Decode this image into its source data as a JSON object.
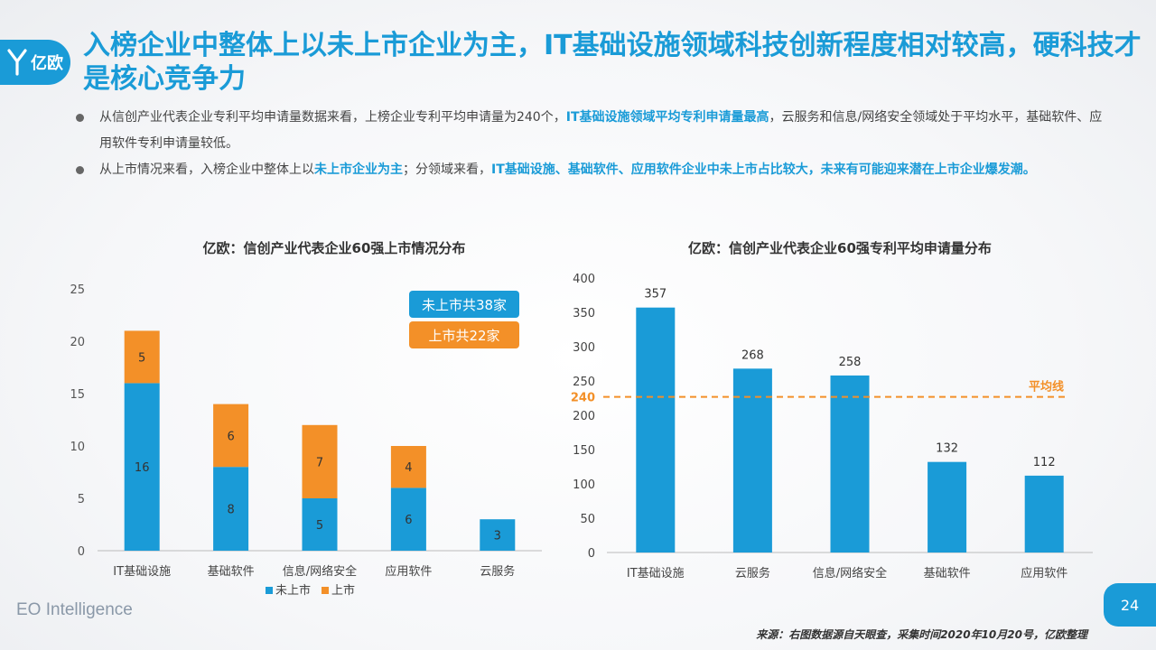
{
  "brand": {
    "logo_text": "亿欧",
    "footer": "EO Intelligence",
    "page_number": "24"
  },
  "title": "入榜企业中整体上以未上市企业为主，IT基础设施领域科技创新程度相对较高，硬科技才是核心竞争力",
  "bullets": [
    {
      "parts": [
        {
          "text": "从信创产业代表企业专利平均申请量数据来看，上榜企业专利平均申请量为240个，",
          "highlight": false
        },
        {
          "text": "IT基础设施领域平均专利申请量最高",
          "highlight": true
        },
        {
          "text": "，云服务和信息/网络安全领域处于平均水平，基础软件、应用软件专利申请量较低。",
          "highlight": false
        }
      ]
    },
    {
      "parts": [
        {
          "text": "从上市情况来看，入榜企业中整体上以",
          "highlight": false
        },
        {
          "text": "未上市企业为主",
          "highlight": true
        },
        {
          "text": "；分领域来看，",
          "highlight": false
        },
        {
          "text": "IT基础设施、基础软件、应用软件企业中未上市占比较大，未来有可能迎来潜在上市企业爆发潮。",
          "highlight": true
        }
      ]
    }
  ],
  "colors": {
    "blue": "#1a9bd7",
    "orange": "#f39028",
    "accent": "#1a9bd7"
  },
  "chart_data": [
    {
      "type": "bar",
      "stacked": true,
      "title": "亿欧：信创产业代表企业60强上市情况分布",
      "categories": [
        "IT基础设施",
        "基础软件",
        "信息/网络安全",
        "应用软件",
        "云服务"
      ],
      "series": [
        {
          "name": "未上市",
          "values": [
            16,
            8,
            5,
            6,
            3
          ],
          "color": "#1a9bd7"
        },
        {
          "name": "上市",
          "values": [
            5,
            6,
            7,
            4,
            0
          ],
          "color": "#f39028"
        }
      ],
      "ylim": [
        0,
        25
      ],
      "yticks": [
        0,
        5,
        10,
        15,
        20,
        25
      ],
      "legend_position": "bottom",
      "annotations": [
        {
          "text": "未上市共38家",
          "color": "#1a9bd7"
        },
        {
          "text": "上市共22家",
          "color": "#f39028"
        }
      ]
    },
    {
      "type": "bar",
      "title": "亿欧：信创产业代表企业60强专利平均申请量分布",
      "categories": [
        "IT基础设施",
        "云服务",
        "信息/网络安全",
        "基础软件",
        "应用软件"
      ],
      "values": [
        357,
        268,
        258,
        132,
        112
      ],
      "color": "#1a9bd7",
      "ylim": [
        0,
        400
      ],
      "yticks": [
        0,
        50,
        100,
        150,
        200,
        250,
        300,
        350,
        400
      ],
      "reference_line": {
        "value": 240,
        "label": "平均线",
        "value_label": "240",
        "color": "#f39028"
      }
    }
  ],
  "source": "来源：右图数据源自天眼查，采集时间2020年10月20号，亿欧整理"
}
